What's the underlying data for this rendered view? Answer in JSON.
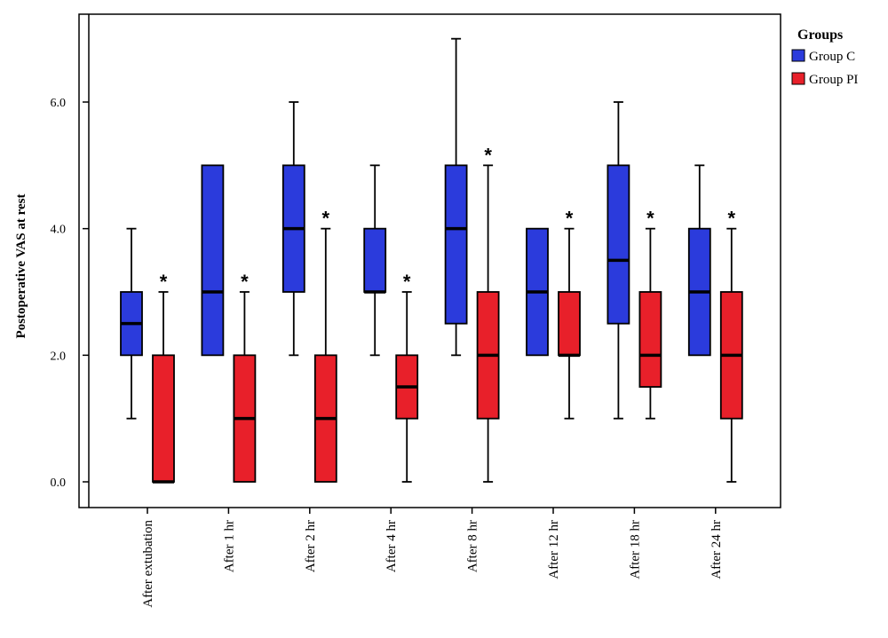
{
  "chart_data": {
    "type": "box",
    "ylabel": "Postoperative VAS at rest",
    "ylim": [
      -0.4,
      7.2
    ],
    "yticks": [
      0,
      2,
      4,
      6
    ],
    "ytick_labels": [
      "0.0",
      "2.0",
      "4.0",
      "6.0"
    ],
    "grid": false,
    "legend_position": "top-right",
    "legend": {
      "title": "Groups",
      "entries": [
        "Group C",
        "Group PI"
      ]
    },
    "categories": [
      "After extubation",
      "After 1 hr",
      "After 2 hr",
      "After 4 hr",
      "After 8 hr",
      "After 12 hr",
      "After 18 hr",
      "After 24 hr"
    ],
    "series": [
      {
        "name": "Group C",
        "color": "#2b3bdc",
        "boxes": [
          {
            "min": 1,
            "q1": 2,
            "median": 2.5,
            "q3": 3,
            "max": 4
          },
          {
            "min": 2,
            "q1": 2,
            "median": 3,
            "q3": 5,
            "max": 5
          },
          {
            "min": 2,
            "q1": 3,
            "median": 4,
            "q3": 5,
            "max": 6
          },
          {
            "min": 2,
            "q1": 3,
            "median": 3,
            "q3": 4,
            "max": 5
          },
          {
            "min": 2,
            "q1": 2.5,
            "median": 4,
            "q3": 5,
            "max": 7
          },
          {
            "min": 2,
            "q1": 2,
            "median": 3,
            "q3": 4,
            "max": 4
          },
          {
            "min": 1,
            "q1": 2.5,
            "median": 3.5,
            "q3": 5,
            "max": 6
          },
          {
            "min": 2,
            "q1": 2,
            "median": 3,
            "q3": 4,
            "max": 5
          }
        ]
      },
      {
        "name": "Group PI",
        "color": "#e8202a",
        "boxes": [
          {
            "min": 0,
            "q1": 0,
            "median": 0,
            "q3": 2,
            "max": 3
          },
          {
            "min": 0,
            "q1": 0,
            "median": 1,
            "q3": 2,
            "max": 3
          },
          {
            "min": 0,
            "q1": 0,
            "median": 1,
            "q3": 2,
            "max": 4
          },
          {
            "min": 0,
            "q1": 1,
            "median": 1.5,
            "q3": 2,
            "max": 3
          },
          {
            "min": 0,
            "q1": 1,
            "median": 2,
            "q3": 3,
            "max": 5
          },
          {
            "min": 1,
            "q1": 2,
            "median": 2,
            "q3": 3,
            "max": 4
          },
          {
            "min": 1,
            "q1": 1.5,
            "median": 2,
            "q3": 3,
            "max": 4
          },
          {
            "min": 0,
            "q1": 1,
            "median": 2,
            "q3": 3,
            "max": 4
          }
        ]
      }
    ],
    "annotations": {
      "marker": "*",
      "series": "Group PI",
      "categories": [
        "After extubation",
        "After 1 hr",
        "After 2 hr",
        "After 4 hr",
        "After 8 hr",
        "After 12 hr",
        "After 18 hr",
        "After 24 hr"
      ]
    }
  }
}
